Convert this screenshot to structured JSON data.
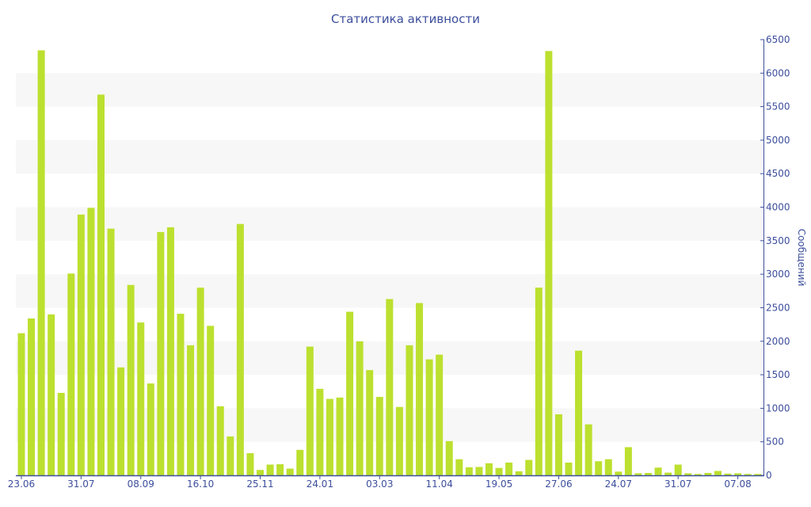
{
  "chart_data": {
    "type": "bar",
    "title": "Статистика активности",
    "xlabel": "",
    "ylabel": "Сообщений",
    "ylim": [
      0,
      6500
    ],
    "yticks": [
      0,
      500,
      1000,
      1500,
      2000,
      2500,
      3000,
      3500,
      4000,
      4500,
      5000,
      5500,
      6000,
      6500
    ],
    "y_axis_side": "right",
    "grid": "alternating horizontal bands",
    "xtick_labels": [
      {
        "index": 0,
        "label": "23.06"
      },
      {
        "index": 6,
        "label": "31.07"
      },
      {
        "index": 12,
        "label": "08.09"
      },
      {
        "index": 18,
        "label": "16.10"
      },
      {
        "index": 24,
        "label": "25.11"
      },
      {
        "index": 30,
        "label": "24.01"
      },
      {
        "index": 36,
        "label": "03.03"
      },
      {
        "index": 42,
        "label": "11.04"
      },
      {
        "index": 48,
        "label": "19.05"
      },
      {
        "index": 54,
        "label": "27.06"
      },
      {
        "index": 60,
        "label": "24.07"
      },
      {
        "index": 66,
        "label": "31.07"
      },
      {
        "index": 72,
        "label": "07.08"
      }
    ],
    "values": [
      2120,
      2340,
      6340,
      2400,
      1230,
      3010,
      3890,
      3990,
      5680,
      3680,
      1610,
      2840,
      2280,
      1370,
      3630,
      3700,
      2410,
      1940,
      2800,
      2230,
      1030,
      580,
      3750,
      330,
      80,
      160,
      165,
      100,
      380,
      1920,
      1290,
      1140,
      1160,
      2440,
      2000,
      1570,
      1170,
      2630,
      1020,
      1940,
      2570,
      1730,
      1800,
      510,
      240,
      120,
      125,
      180,
      110,
      190,
      60,
      230,
      2800,
      6330,
      910,
      190,
      1860,
      760,
      210,
      240,
      55,
      420,
      30,
      35,
      115,
      40,
      160,
      30,
      20,
      35,
      65,
      25,
      30,
      20,
      20
    ],
    "colors": {
      "bar": "#bce02f",
      "axis": "#3c4e9c",
      "band": "#f7f7f7"
    }
  }
}
